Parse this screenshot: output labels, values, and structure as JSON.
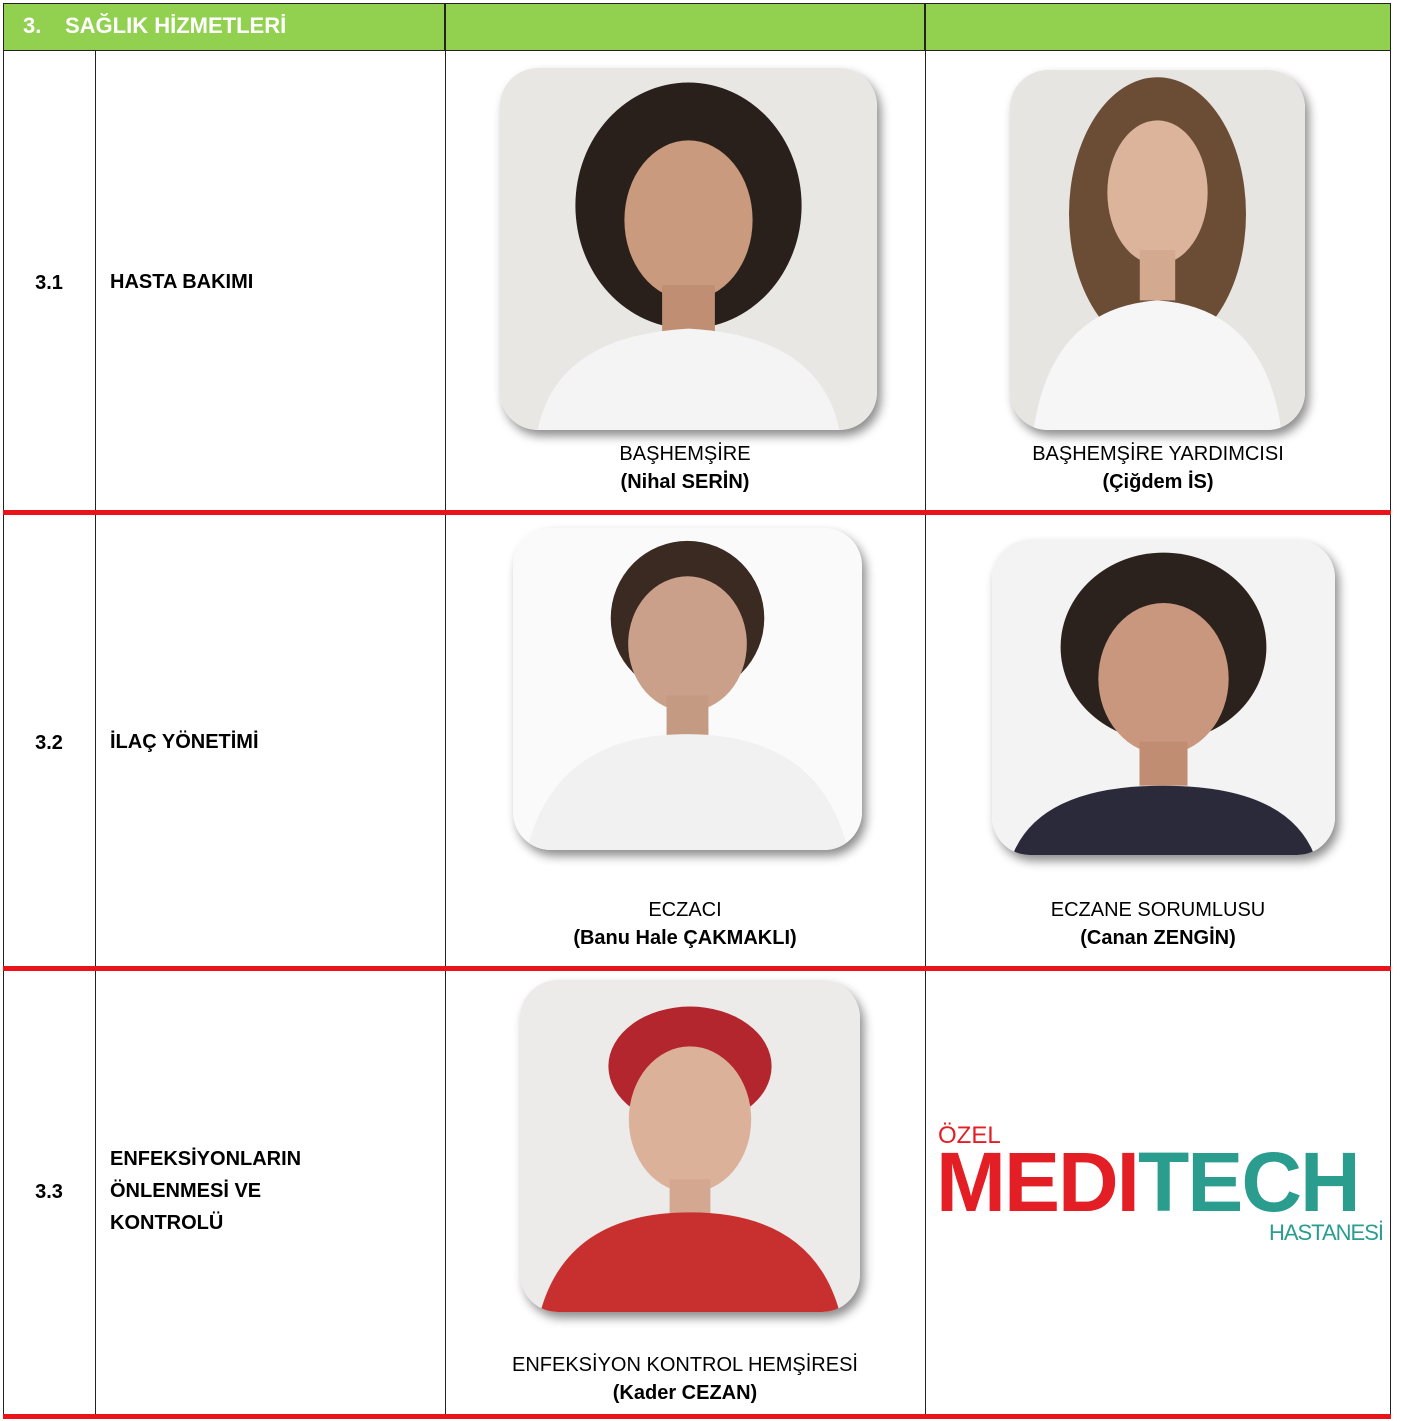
{
  "header": {
    "number": "3.",
    "title": "SAĞLIK HİZMETLERİ"
  },
  "rows": [
    {
      "number": "3.1",
      "title": [
        "HASTA BAKIMI"
      ],
      "people": [
        {
          "role": "BAŞHEMŞİRE",
          "name": "(Nihal SERİN)"
        },
        {
          "role": "BAŞHEMŞİRE YARDIMCISI",
          "name": "(Çiğdem İS)"
        }
      ]
    },
    {
      "number": "3.2",
      "title": [
        "İLAÇ YÖNETİMİ"
      ],
      "people": [
        {
          "role": "ECZACI",
          "name": "(Banu Hale ÇAKMAKLI)"
        },
        {
          "role": "ECZANE SORUMLUSU",
          "name": "(Canan ZENGİN)"
        }
      ]
    },
    {
      "number": "3.3",
      "title": [
        "ENFEKSİYONLARIN",
        "ÖNLENMESİ VE",
        "KONTROLÜ"
      ],
      "people": [
        {
          "role": "ENFEKSİYON KONTROL HEMŞİRESİ",
          "name": "(Kader CEZAN)"
        }
      ]
    }
  ],
  "logo": {
    "top": "ÖZEL",
    "main_red": "MEDI",
    "main_teal": "TECH",
    "bottom": "HASTANESİ"
  }
}
